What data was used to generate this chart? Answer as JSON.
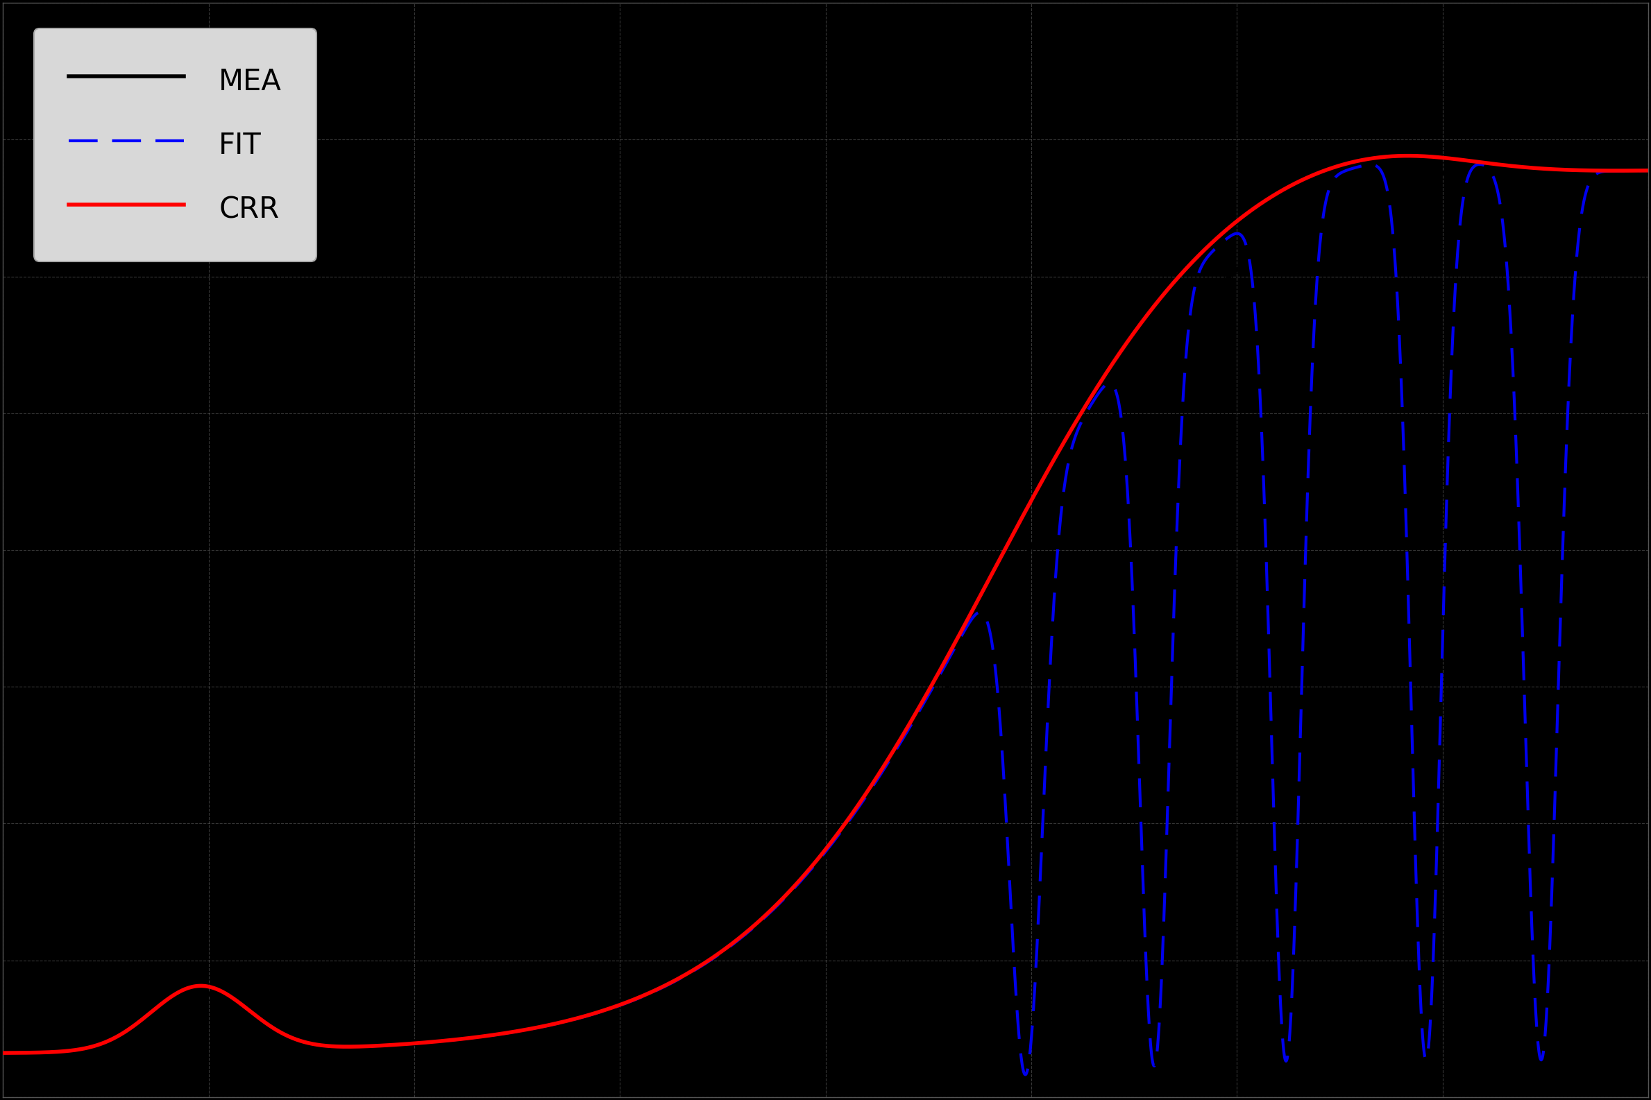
{
  "background_color": "#000000",
  "plot_bg_color": "#000000",
  "grid_color": "#666666",
  "legend_bg": "#d8d8d8",
  "xlim": [
    0,
    1
  ],
  "ylim": [
    0,
    1
  ],
  "mea_color": "#000000",
  "fit_color": "#0000ee",
  "crr_color": "#ff0000",
  "mea_lw": 4.0,
  "fit_lw": 3.0,
  "crr_lw": 4.0,
  "legend_fontsize": 30,
  "grid_alpha": 0.55,
  "grid_lw": 0.8
}
